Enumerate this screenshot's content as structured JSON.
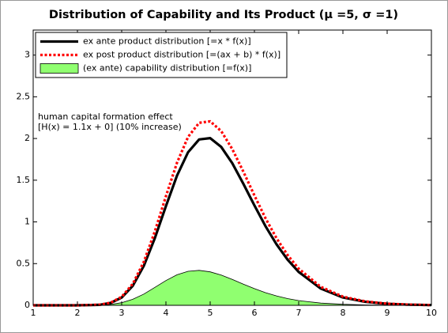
{
  "chart_data": {
    "type": "line",
    "title": "Distribution of Capability and Its Product (μ =5, σ =1)",
    "x": [
      1,
      2,
      2.5,
      2.75,
      3,
      3.25,
      3.5,
      3.75,
      4,
      4.25,
      4.5,
      4.75,
      5,
      5.25,
      5.5,
      5.75,
      6,
      6.25,
      6.5,
      6.75,
      7,
      7.5,
      8,
      8.5,
      9,
      9.5,
      10
    ],
    "series": [
      {
        "name": "ex ante product distribution  [=x * f(x)]",
        "color": "#000000",
        "style": "solid",
        "values": [
          0,
          0,
          0.006,
          0.028,
          0.093,
          0.233,
          0.473,
          0.806,
          1.189,
          1.554,
          1.835,
          1.989,
          2.005,
          1.898,
          1.703,
          1.457,
          1.198,
          0.949,
          0.731,
          0.547,
          0.4,
          0.201,
          0.094,
          0.043,
          0.018,
          0.008,
          0.003
        ]
      },
      {
        "name": "ex post product distribution  [=(ax + b) * f(x)]",
        "color": "#ff0000",
        "style": "dotted",
        "values": [
          0,
          0,
          0.007,
          0.031,
          0.102,
          0.257,
          0.521,
          0.887,
          1.308,
          1.709,
          2.019,
          2.188,
          2.206,
          2.088,
          1.873,
          1.603,
          1.317,
          1.044,
          0.804,
          0.602,
          0.44,
          0.221,
          0.104,
          0.047,
          0.02,
          0.008,
          0.003
        ]
      },
      {
        "name": "(ex ante) capability distribution  [=f(x)]",
        "color": "#90ff70",
        "style": "area",
        "values": [
          0,
          0,
          0.002,
          0.01,
          0.031,
          0.072,
          0.135,
          0.215,
          0.297,
          0.366,
          0.408,
          0.419,
          0.401,
          0.362,
          0.31,
          0.253,
          0.2,
          0.152,
          0.113,
          0.081,
          0.057,
          0.027,
          0.012,
          0.005,
          0.002,
          0.001,
          0
        ]
      }
    ],
    "annotations": [
      "human capital formation effect",
      "[H(x) = 1.1x + 0] (10% increase)"
    ],
    "xlim": [
      1,
      10
    ],
    "xticks": [
      1,
      2,
      3,
      4,
      5,
      6,
      7,
      8,
      9,
      10
    ],
    "ylim": [
      0,
      3.3
    ],
    "yticks": [
      0,
      0.5,
      1,
      1.5,
      2,
      2.5,
      3
    ],
    "grid": false,
    "legend": "upper left"
  }
}
